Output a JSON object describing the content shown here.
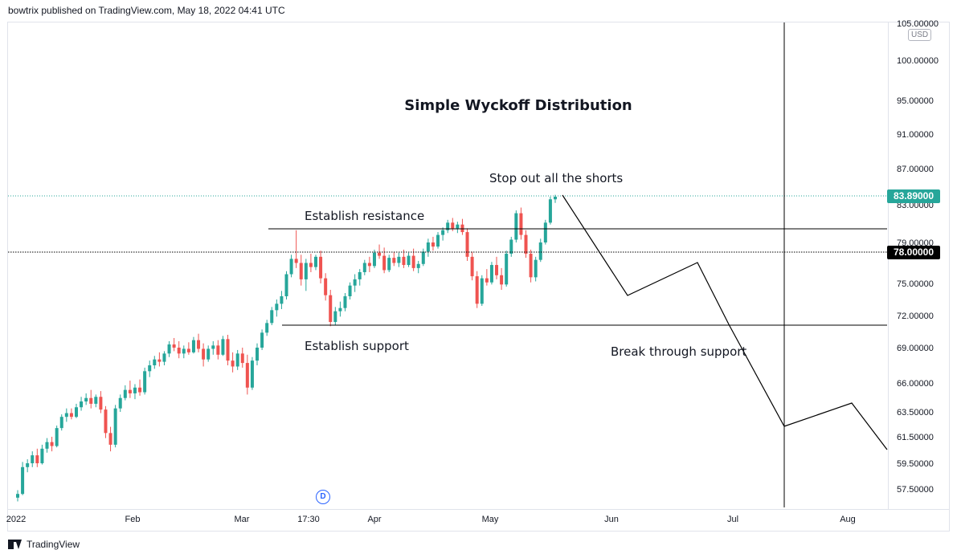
{
  "header": {
    "publisher_line": "bowtrix published on TradingView.com, May 18, 2022 04:41 UTC"
  },
  "footer": {
    "brand": "TradingView"
  },
  "chart_data": {
    "type": "candlestick",
    "title": "Simple Wyckoff Distribution",
    "currency": "USD",
    "y_ticks": [
      "105.00000",
      "100.00000",
      "95.00000",
      "91.00000",
      "87.00000",
      "83.00000",
      "79.00000",
      "75.00000",
      "72.00000",
      "69.00000",
      "66.00000",
      "63.50000",
      "61.50000",
      "59.50000",
      "57.50000"
    ],
    "x_ticks": [
      "2022",
      "Feb",
      "Mar",
      "17:30",
      "Apr",
      "May",
      "Jun",
      "Jul",
      "Aug"
    ],
    "last_price": "83.89000",
    "horizontal_line_price": "78.00000",
    "resistance_level": 80.8,
    "support_level": 71.2,
    "colors": {
      "up": "#26a69a",
      "down": "#ef5350",
      "lines": "#000000"
    },
    "candles": [
      [
        56.8,
        57.4,
        56.5,
        57.1
      ],
      [
        57.1,
        59.6,
        57.0,
        59.2
      ],
      [
        59.2,
        59.8,
        58.8,
        59.5
      ],
      [
        59.5,
        60.4,
        59.2,
        60.1
      ],
      [
        60.1,
        60.6,
        59.2,
        59.5
      ],
      [
        59.5,
        60.9,
        59.4,
        60.6
      ],
      [
        60.6,
        61.4,
        60.3,
        61.1
      ],
      [
        61.1,
        61.5,
        60.4,
        60.8
      ],
      [
        60.8,
        62.4,
        60.7,
        62.2
      ],
      [
        62.2,
        63.3,
        62.0,
        63.1
      ],
      [
        63.1,
        63.8,
        62.7,
        63.4
      ],
      [
        63.4,
        63.8,
        62.9,
        63.1
      ],
      [
        63.1,
        64.2,
        63.0,
        63.9
      ],
      [
        63.9,
        64.8,
        63.6,
        64.4
      ],
      [
        64.4,
        65.1,
        64.1,
        64.7
      ],
      [
        64.7,
        65.4,
        63.8,
        64.2
      ],
      [
        64.2,
        65.0,
        63.9,
        64.8
      ],
      [
        64.8,
        65.3,
        63.4,
        63.7
      ],
      [
        63.7,
        64.0,
        61.4,
        61.8
      ],
      [
        61.8,
        62.3,
        60.4,
        60.9
      ],
      [
        60.9,
        64.1,
        60.7,
        63.8
      ],
      [
        63.8,
        65.0,
        63.5,
        64.7
      ],
      [
        64.7,
        65.8,
        64.5,
        65.4
      ],
      [
        65.4,
        66.2,
        64.7,
        65.1
      ],
      [
        65.1,
        65.9,
        64.6,
        65.6
      ],
      [
        65.6,
        66.3,
        64.9,
        65.2
      ],
      [
        65.2,
        67.3,
        65.0,
        67.0
      ],
      [
        67.0,
        67.9,
        66.5,
        67.5
      ],
      [
        67.5,
        68.3,
        67.2,
        68.0
      ],
      [
        68.0,
        68.6,
        67.4,
        67.8
      ],
      [
        67.8,
        68.7,
        67.5,
        68.5
      ],
      [
        68.5,
        69.6,
        68.2,
        69.3
      ],
      [
        69.3,
        69.9,
        68.7,
        69.0
      ],
      [
        69.0,
        69.6,
        68.1,
        68.5
      ],
      [
        68.5,
        69.2,
        68.1,
        68.9
      ],
      [
        68.9,
        69.5,
        68.4,
        68.6
      ],
      [
        68.6,
        70.0,
        68.5,
        69.7
      ],
      [
        69.7,
        70.3,
        68.6,
        68.9
      ],
      [
        68.9,
        69.4,
        67.4,
        68.0
      ],
      [
        68.0,
        69.2,
        67.8,
        68.9
      ],
      [
        68.9,
        69.6,
        68.4,
        69.2
      ],
      [
        69.2,
        69.7,
        68.0,
        68.4
      ],
      [
        68.4,
        70.1,
        68.3,
        69.8
      ],
      [
        69.8,
        70.2,
        67.5,
        67.9
      ],
      [
        67.9,
        68.6,
        66.9,
        67.4
      ],
      [
        67.4,
        68.8,
        67.1,
        68.5
      ],
      [
        68.5,
        69.0,
        67.3,
        67.7
      ],
      [
        67.7,
        68.4,
        65.0,
        65.6
      ],
      [
        65.6,
        68.2,
        65.4,
        67.9
      ],
      [
        67.9,
        69.4,
        67.5,
        69.0
      ],
      [
        69.0,
        70.7,
        68.8,
        70.4
      ],
      [
        70.4,
        71.6,
        70.1,
        71.3
      ],
      [
        71.3,
        72.8,
        71.1,
        72.5
      ],
      [
        72.5,
        73.5,
        71.9,
        73.1
      ],
      [
        73.1,
        74.3,
        72.6,
        73.8
      ],
      [
        73.8,
        76.2,
        73.5,
        75.9
      ],
      [
        75.9,
        77.8,
        75.6,
        77.4
      ],
      [
        77.4,
        80.3,
        76.5,
        77.0
      ],
      [
        77.0,
        77.8,
        74.8,
        75.4
      ],
      [
        75.4,
        77.4,
        74.3,
        77.0
      ],
      [
        77.0,
        77.9,
        76.1,
        76.6
      ],
      [
        76.6,
        77.8,
        76.3,
        77.6
      ],
      [
        77.6,
        78.2,
        75.0,
        75.5
      ],
      [
        75.5,
        76.0,
        73.4,
        73.9
      ],
      [
        73.9,
        74.4,
        71.0,
        71.4
      ],
      [
        71.4,
        72.8,
        71.1,
        72.4
      ],
      [
        72.4,
        73.3,
        71.9,
        72.7
      ],
      [
        72.7,
        74.1,
        72.4,
        73.8
      ],
      [
        73.8,
        75.1,
        73.5,
        74.8
      ],
      [
        74.8,
        75.9,
        74.2,
        75.4
      ],
      [
        75.4,
        76.4,
        74.8,
        76.1
      ],
      [
        76.1,
        77.3,
        75.8,
        77.0
      ],
      [
        77.0,
        77.6,
        76.1,
        76.7
      ],
      [
        76.7,
        78.3,
        76.5,
        78.0
      ],
      [
        78.0,
        78.8,
        77.4,
        77.7
      ],
      [
        77.7,
        78.5,
        76.0,
        76.3
      ],
      [
        76.3,
        77.8,
        76.1,
        77.5
      ],
      [
        77.5,
        78.1,
        76.7,
        77.0
      ],
      [
        77.0,
        78.0,
        76.6,
        77.6
      ],
      [
        77.6,
        78.3,
        76.5,
        76.8
      ],
      [
        76.8,
        78.0,
        76.6,
        77.7
      ],
      [
        77.7,
        78.4,
        76.2,
        76.5
      ],
      [
        76.5,
        77.2,
        76.0,
        76.9
      ],
      [
        76.9,
        78.4,
        76.7,
        78.1
      ],
      [
        78.1,
        79.4,
        77.6,
        79.0
      ],
      [
        79.0,
        79.6,
        78.2,
        78.6
      ],
      [
        78.6,
        80.1,
        78.4,
        79.8
      ],
      [
        79.8,
        80.6,
        79.2,
        80.3
      ],
      [
        80.3,
        81.4,
        80.0,
        81.1
      ],
      [
        81.1,
        81.6,
        80.2,
        80.5
      ],
      [
        80.5,
        81.2,
        80.0,
        80.9
      ],
      [
        80.9,
        81.5,
        79.8,
        80.1
      ],
      [
        80.1,
        80.5,
        77.2,
        77.6
      ],
      [
        77.6,
        78.1,
        75.3,
        75.7
      ],
      [
        75.7,
        76.2,
        72.7,
        73.1
      ],
      [
        73.1,
        75.8,
        72.9,
        75.5
      ],
      [
        75.5,
        76.4,
        74.8,
        75.1
      ],
      [
        75.1,
        77.1,
        74.9,
        76.8
      ],
      [
        76.8,
        77.6,
        75.4,
        75.8
      ],
      [
        75.8,
        76.5,
        74.4,
        74.9
      ],
      [
        74.9,
        78.2,
        74.7,
        77.9
      ],
      [
        77.9,
        79.6,
        77.6,
        79.3
      ],
      [
        79.3,
        82.4,
        79.0,
        82.1
      ],
      [
        82.1,
        82.7,
        79.3,
        79.8
      ],
      [
        79.8,
        80.3,
        77.5,
        77.9
      ],
      [
        77.9,
        78.3,
        75.1,
        75.6
      ],
      [
        75.6,
        77.6,
        75.2,
        77.3
      ],
      [
        77.3,
        79.4,
        77.1,
        79.0
      ],
      [
        79.0,
        81.4,
        78.8,
        81.1
      ],
      [
        81.1,
        83.9,
        80.9,
        83.6
      ],
      [
        83.6,
        84.1,
        83.2,
        83.89
      ]
    ],
    "projection_path": [
      [
        0,
        83.89
      ],
      [
        1,
        81.5
      ],
      [
        2,
        73.9
      ],
      [
        3,
        77.2
      ],
      [
        4,
        71.0
      ],
      [
        5,
        62.3
      ],
      [
        6,
        64.4
      ],
      [
        7,
        61.1
      ]
    ],
    "annotations": [
      "Stop out all the shorts",
      "Establish resistance",
      "Establish support",
      "Break through support"
    ]
  }
}
